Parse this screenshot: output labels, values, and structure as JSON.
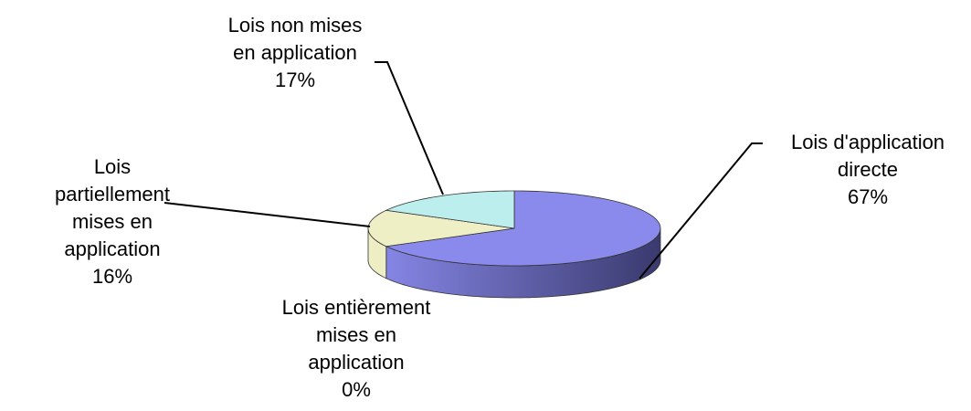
{
  "chart_data": {
    "type": "pie",
    "style": "3d",
    "start": "top, clockwise",
    "slices": [
      {
        "label_lines": [
          "Lois d'application",
          "directe"
        ],
        "value": 67,
        "pct": "67%",
        "color": "#8a8aec",
        "side_dark": "#3a3a6e"
      },
      {
        "label_lines": [
          "Lois entièrement",
          "mises en",
          "application"
        ],
        "value": 0,
        "pct": "0%",
        "color": "#c0c0f0",
        "side_dark": "#5a5a90"
      },
      {
        "label_lines": [
          "Lois",
          "partiellement",
          "mises en",
          "application"
        ],
        "value": 16,
        "pct": "16%",
        "color": "#efefc6",
        "side_dark": "#d6d6a8"
      },
      {
        "label_lines": [
          "Lois non mises",
          "en application"
        ],
        "value": 17,
        "pct": "17%",
        "color": "#bdeeee",
        "side_dark": "#8fc8c8"
      }
    ],
    "legend": "none (data labels with leader lines)"
  }
}
